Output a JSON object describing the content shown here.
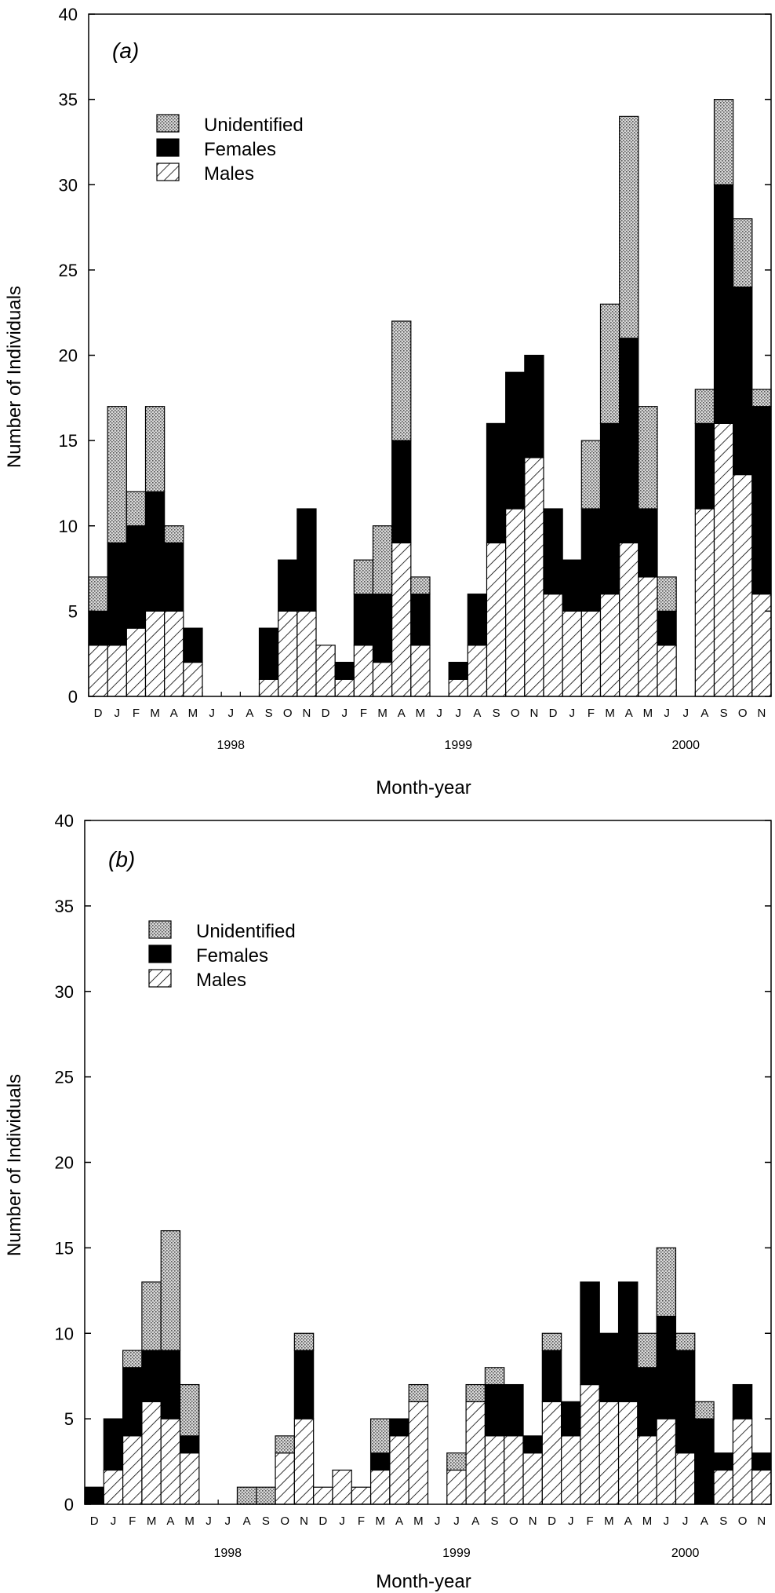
{
  "chart_data": [
    {
      "type": "bar",
      "stacked": true,
      "panel_label": "(a)",
      "xlabel": "Month-year",
      "ylabel": "Number of Individuals",
      "ylim": [
        0,
        40
      ],
      "yticks": [
        0,
        5,
        10,
        15,
        20,
        25,
        30,
        35,
        40
      ],
      "grid": false,
      "legend_position": "top-left",
      "categories": [
        "D",
        "J",
        "F",
        "M",
        "A",
        "M",
        "J",
        "J",
        "A",
        "S",
        "O",
        "N",
        "D",
        "J",
        "F",
        "M",
        "A",
        "M",
        "J",
        "J",
        "A",
        "S",
        "O",
        "N",
        "D",
        "J",
        "F",
        "M",
        "A",
        "M",
        "J",
        "J",
        "A",
        "S",
        "O",
        "N"
      ],
      "year_labels": [
        {
          "label": "1998",
          "index": 7
        },
        {
          "label": "1999",
          "index": 19
        },
        {
          "label": "2000",
          "index": 31
        }
      ],
      "series": [
        {
          "name": "Males",
          "values": [
            3,
            3,
            4,
            5,
            5,
            2,
            0,
            0,
            0,
            1,
            5,
            5,
            3,
            1,
            3,
            2,
            9,
            3,
            0,
            1,
            3,
            9,
            11,
            14,
            6,
            5,
            5,
            6,
            9,
            7,
            3,
            0,
            11,
            16,
            13,
            6
          ]
        },
        {
          "name": "Females",
          "values": [
            2,
            6,
            6,
            7,
            4,
            2,
            0,
            0,
            0,
            3,
            3,
            6,
            0,
            1,
            3,
            4,
            6,
            3,
            0,
            1,
            3,
            7,
            8,
            6,
            5,
            3,
            6,
            10,
            12,
            4,
            2,
            0,
            5,
            14,
            11,
            11
          ]
        },
        {
          "name": "Unidentified",
          "values": [
            2,
            8,
            2,
            5,
            1,
            0,
            0,
            0,
            0,
            0,
            0,
            0,
            0,
            0,
            2,
            4,
            7,
            1,
            0,
            0,
            0,
            0,
            0,
            0,
            0,
            0,
            4,
            7,
            13,
            6,
            2,
            0,
            2,
            5,
            4,
            1
          ]
        }
      ]
    },
    {
      "type": "bar",
      "stacked": true,
      "panel_label": "(b)",
      "xlabel": "Month-year",
      "ylabel": "Number of Individuals",
      "ylim": [
        0,
        40
      ],
      "yticks": [
        0,
        5,
        10,
        15,
        20,
        25,
        30,
        35,
        40
      ],
      "grid": false,
      "legend_position": "top-left",
      "categories": [
        "D",
        "J",
        "F",
        "M",
        "A",
        "M",
        "J",
        "J",
        "A",
        "S",
        "O",
        "N",
        "D",
        "J",
        "F",
        "M",
        "A",
        "M",
        "J",
        "J",
        "A",
        "S",
        "O",
        "N",
        "D",
        "J",
        "F",
        "M",
        "A",
        "M",
        "J",
        "J",
        "A",
        "S",
        "O",
        "N"
      ],
      "year_labels": [
        {
          "label": "1998",
          "index": 7
        },
        {
          "label": "1999",
          "index": 19
        },
        {
          "label": "2000",
          "index": 31
        }
      ],
      "series": [
        {
          "name": "Males",
          "values": [
            0,
            2,
            4,
            6,
            5,
            3,
            0,
            0,
            0,
            0,
            3,
            5,
            1,
            2,
            1,
            2,
            4,
            6,
            0,
            2,
            6,
            4,
            4,
            3,
            6,
            4,
            7,
            6,
            6,
            4,
            5,
            3,
            0,
            2,
            5,
            2
          ]
        },
        {
          "name": "Females",
          "values": [
            1,
            3,
            4,
            3,
            4,
            1,
            0,
            0,
            0,
            0,
            0,
            4,
            0,
            0,
            0,
            1,
            1,
            0,
            0,
            0,
            0,
            3,
            3,
            1,
            3,
            2,
            6,
            4,
            7,
            4,
            6,
            6,
            5,
            1,
            2,
            1
          ]
        },
        {
          "name": "Unidentified",
          "values": [
            0,
            0,
            1,
            4,
            7,
            3,
            0,
            0,
            1,
            1,
            1,
            1,
            0,
            0,
            0,
            2,
            0,
            1,
            0,
            1,
            1,
            1,
            0,
            0,
            1,
            0,
            0,
            0,
            0,
            2,
            4,
            1,
            1,
            0,
            0,
            0
          ]
        }
      ]
    }
  ]
}
